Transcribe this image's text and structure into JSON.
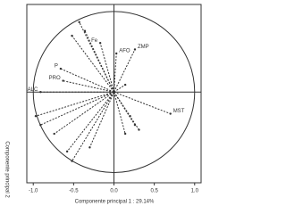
{
  "chart_data": {
    "type": "vector",
    "xlabel": "Componente principal 1 : 29.14%",
    "ylabel": "Componente principal 2",
    "labels": [
      "MST",
      "ZMP",
      "P",
      "PRO",
      "ALC",
      "Fe",
      "AFO",
      null,
      null,
      null,
      null,
      null,
      null,
      null,
      null,
      null,
      null,
      null,
      null,
      null,
      null
    ],
    "x": [
      0.7,
      0.26,
      -0.66,
      -0.63,
      -0.91,
      -0.17,
      0.03,
      -0.43,
      -0.36,
      -0.52,
      -0.97,
      -0.91,
      -0.74,
      -0.58,
      -0.52,
      -0.3,
      0.14,
      0.26,
      0.2,
      0.31,
      0.14
    ],
    "y": [
      -0.27,
      0.53,
      0.29,
      0.14,
      0.0,
      0.61,
      0.48,
      0.87,
      0.76,
      0.7,
      -0.3,
      -0.41,
      -0.52,
      -0.74,
      -0.86,
      -0.69,
      -0.52,
      -0.41,
      -0.3,
      -0.47,
      0.09
    ],
    "color": "#333333",
    "xlim": [
      -1.08,
      1.08
    ],
    "ylim": [
      -1.13,
      1.09
    ],
    "xticks": [
      {
        "value": -1.0,
        "label": "-1.0"
      },
      {
        "value": -0.5,
        "label": "-0.5"
      },
      {
        "value": 0.0,
        "label": "0.0"
      },
      {
        "value": 0.5,
        "label": "0.5"
      },
      {
        "value": 1.0,
        "label": "1.0"
      }
    ]
  }
}
